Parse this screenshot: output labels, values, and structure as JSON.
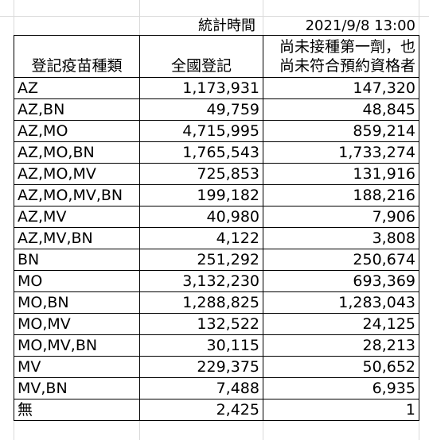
{
  "stat_time": {
    "label": "統計時間",
    "value": "2021/9/8 13:00"
  },
  "columns": {
    "category": "登記疫苗種類",
    "national": "全國登記",
    "not_yet_line1": "尚未接種第一劑，也",
    "not_yet_line2": "尚未符合預約資格者"
  },
  "rows": [
    {
      "type": "AZ",
      "national": "1,173,931",
      "not_yet": "147,320"
    },
    {
      "type": "AZ,BN",
      "national": "49,759",
      "not_yet": "48,845"
    },
    {
      "type": "AZ,MO",
      "national": "4,715,995",
      "not_yet": "859,214"
    },
    {
      "type": "AZ,MO,BN",
      "national": "1,765,543",
      "not_yet": "1,733,274"
    },
    {
      "type": "AZ,MO,MV",
      "national": "725,853",
      "not_yet": "131,916"
    },
    {
      "type": "AZ,MO,MV,BN",
      "national": "199,182",
      "not_yet": "188,216"
    },
    {
      "type": "AZ,MV",
      "national": "40,980",
      "not_yet": "7,906"
    },
    {
      "type": "AZ,MV,BN",
      "national": "4,122",
      "not_yet": "3,808"
    },
    {
      "type": "BN",
      "national": "251,292",
      "not_yet": "250,674"
    },
    {
      "type": "MO",
      "national": "3,132,230",
      "not_yet": "693,369"
    },
    {
      "type": "MO,BN",
      "national": "1,288,825",
      "not_yet": "1,283,043"
    },
    {
      "type": "MO,MV",
      "national": "132,522",
      "not_yet": "24,125"
    },
    {
      "type": "MO,MV,BN",
      "national": "30,115",
      "not_yet": "28,213"
    },
    {
      "type": "MV",
      "national": "229,375",
      "not_yet": "50,652"
    },
    {
      "type": "MV,BN",
      "national": "7,488",
      "not_yet": "6,935"
    },
    {
      "type": "無",
      "national": "2,425",
      "not_yet": "1"
    }
  ]
}
